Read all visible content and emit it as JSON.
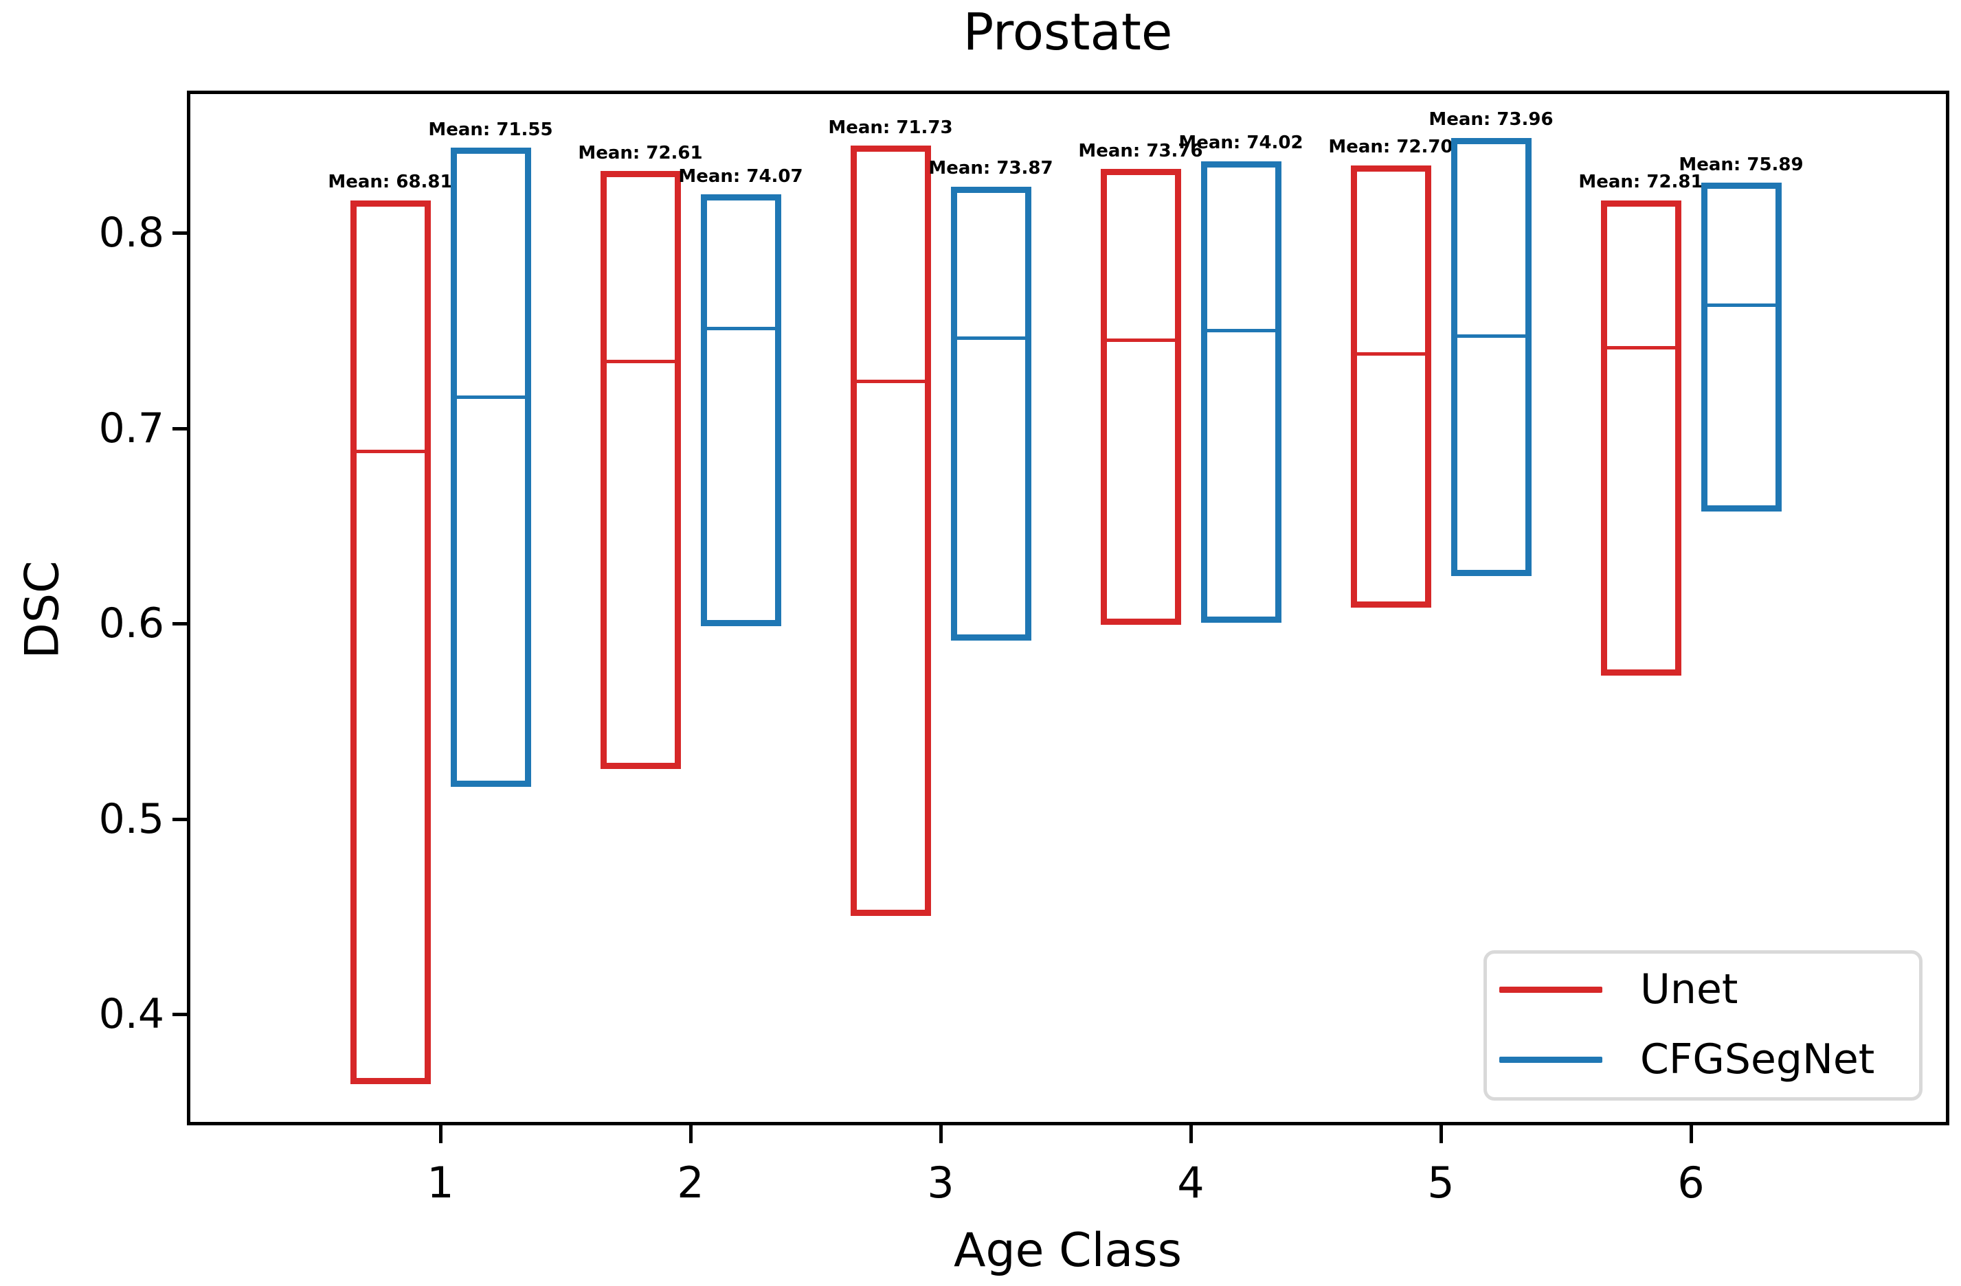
{
  "chart_data": {
    "type": "boxplot",
    "title": "Prostate",
    "xlabel": "Age Class",
    "ylabel": "DSC",
    "categories": [
      "1",
      "2",
      "3",
      "4",
      "5",
      "6"
    ],
    "yticks": [
      0.4,
      0.5,
      0.6,
      0.7,
      0.8
    ],
    "ytick_labels": [
      "0.4",
      "0.5",
      "0.6",
      "0.7",
      "0.8"
    ],
    "ylim": [
      0.345,
      0.871
    ],
    "grid": false,
    "legend_position": "lower right",
    "series": [
      {
        "name": "Unet",
        "color": "#d62728",
        "boxes": [
          {
            "category": "1",
            "low": 0.366,
            "median": 0.688,
            "high": 0.815,
            "mean": 68.81,
            "mean_label": "Mean: 68.81"
          },
          {
            "category": "2",
            "low": 0.527,
            "median": 0.734,
            "high": 0.83,
            "mean": 72.61,
            "mean_label": "Mean: 72.61"
          },
          {
            "category": "3",
            "low": 0.452,
            "median": 0.724,
            "high": 0.843,
            "mean": 71.73,
            "mean_label": "Mean: 71.73"
          },
          {
            "category": "4",
            "low": 0.601,
            "median": 0.745,
            "high": 0.831,
            "mean": 73.76,
            "mean_label": "Mean: 73.76"
          },
          {
            "category": "5",
            "low": 0.61,
            "median": 0.738,
            "high": 0.833,
            "mean": 72.7,
            "mean_label": "Mean: 72.70"
          },
          {
            "category": "6",
            "low": 0.575,
            "median": 0.741,
            "high": 0.815,
            "mean": 72.81,
            "mean_label": "Mean: 72.81"
          }
        ]
      },
      {
        "name": "CFGSegNet",
        "color": "#1f77b4",
        "boxes": [
          {
            "category": "1",
            "low": 0.518,
            "median": 0.716,
            "high": 0.842,
            "mean": 71.55,
            "mean_label": "Mean: 71.55"
          },
          {
            "category": "2",
            "low": 0.6,
            "median": 0.751,
            "high": 0.818,
            "mean": 74.07,
            "mean_label": "Mean: 74.07"
          },
          {
            "category": "3",
            "low": 0.593,
            "median": 0.746,
            "high": 0.822,
            "mean": 73.87,
            "mean_label": "Mean: 73.87"
          },
          {
            "category": "4",
            "low": 0.602,
            "median": 0.75,
            "high": 0.835,
            "mean": 74.02,
            "mean_label": "Mean: 74.02"
          },
          {
            "category": "5",
            "low": 0.626,
            "median": 0.747,
            "high": 0.847,
            "mean": 73.96,
            "mean_label": "Mean: 73.96"
          },
          {
            "category": "6",
            "low": 0.659,
            "median": 0.763,
            "high": 0.824,
            "mean": 75.89,
            "mean_label": "Mean: 75.89"
          }
        ]
      }
    ]
  }
}
